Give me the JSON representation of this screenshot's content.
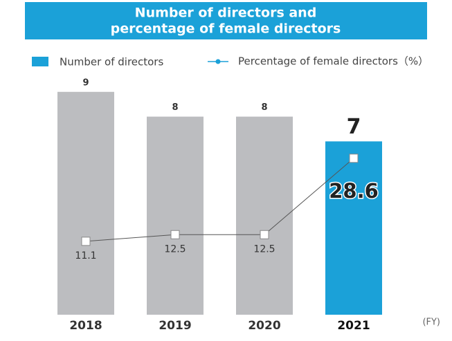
{
  "chart_data": {
    "type": "bar_line",
    "title": [
      "Number of directors and",
      "percentage of female directors"
    ],
    "title_background": "#1ba1d8",
    "categories": [
      "2018",
      "2019",
      "2020",
      "2021"
    ],
    "x_unit": "(FY)",
    "series": [
      {
        "name": "Number of directors",
        "type": "bar",
        "color": "#1ba1d8",
        "colors": [
          "#bcbdc0",
          "#bcbdc0",
          "#bcbdc0",
          "#1ba1d8"
        ],
        "values": [
          9,
          8,
          8,
          7
        ]
      },
      {
        "name": "Percentage of female directors（%）",
        "type": "line",
        "axis": "y2",
        "color": "#1ba1d8",
        "line_color": "#555555",
        "values": [
          11.1,
          12.5,
          12.5,
          28.6
        ]
      }
    ],
    "ylim": [
      0,
      10
    ],
    "y2lim": [
      0,
      50
    ]
  }
}
